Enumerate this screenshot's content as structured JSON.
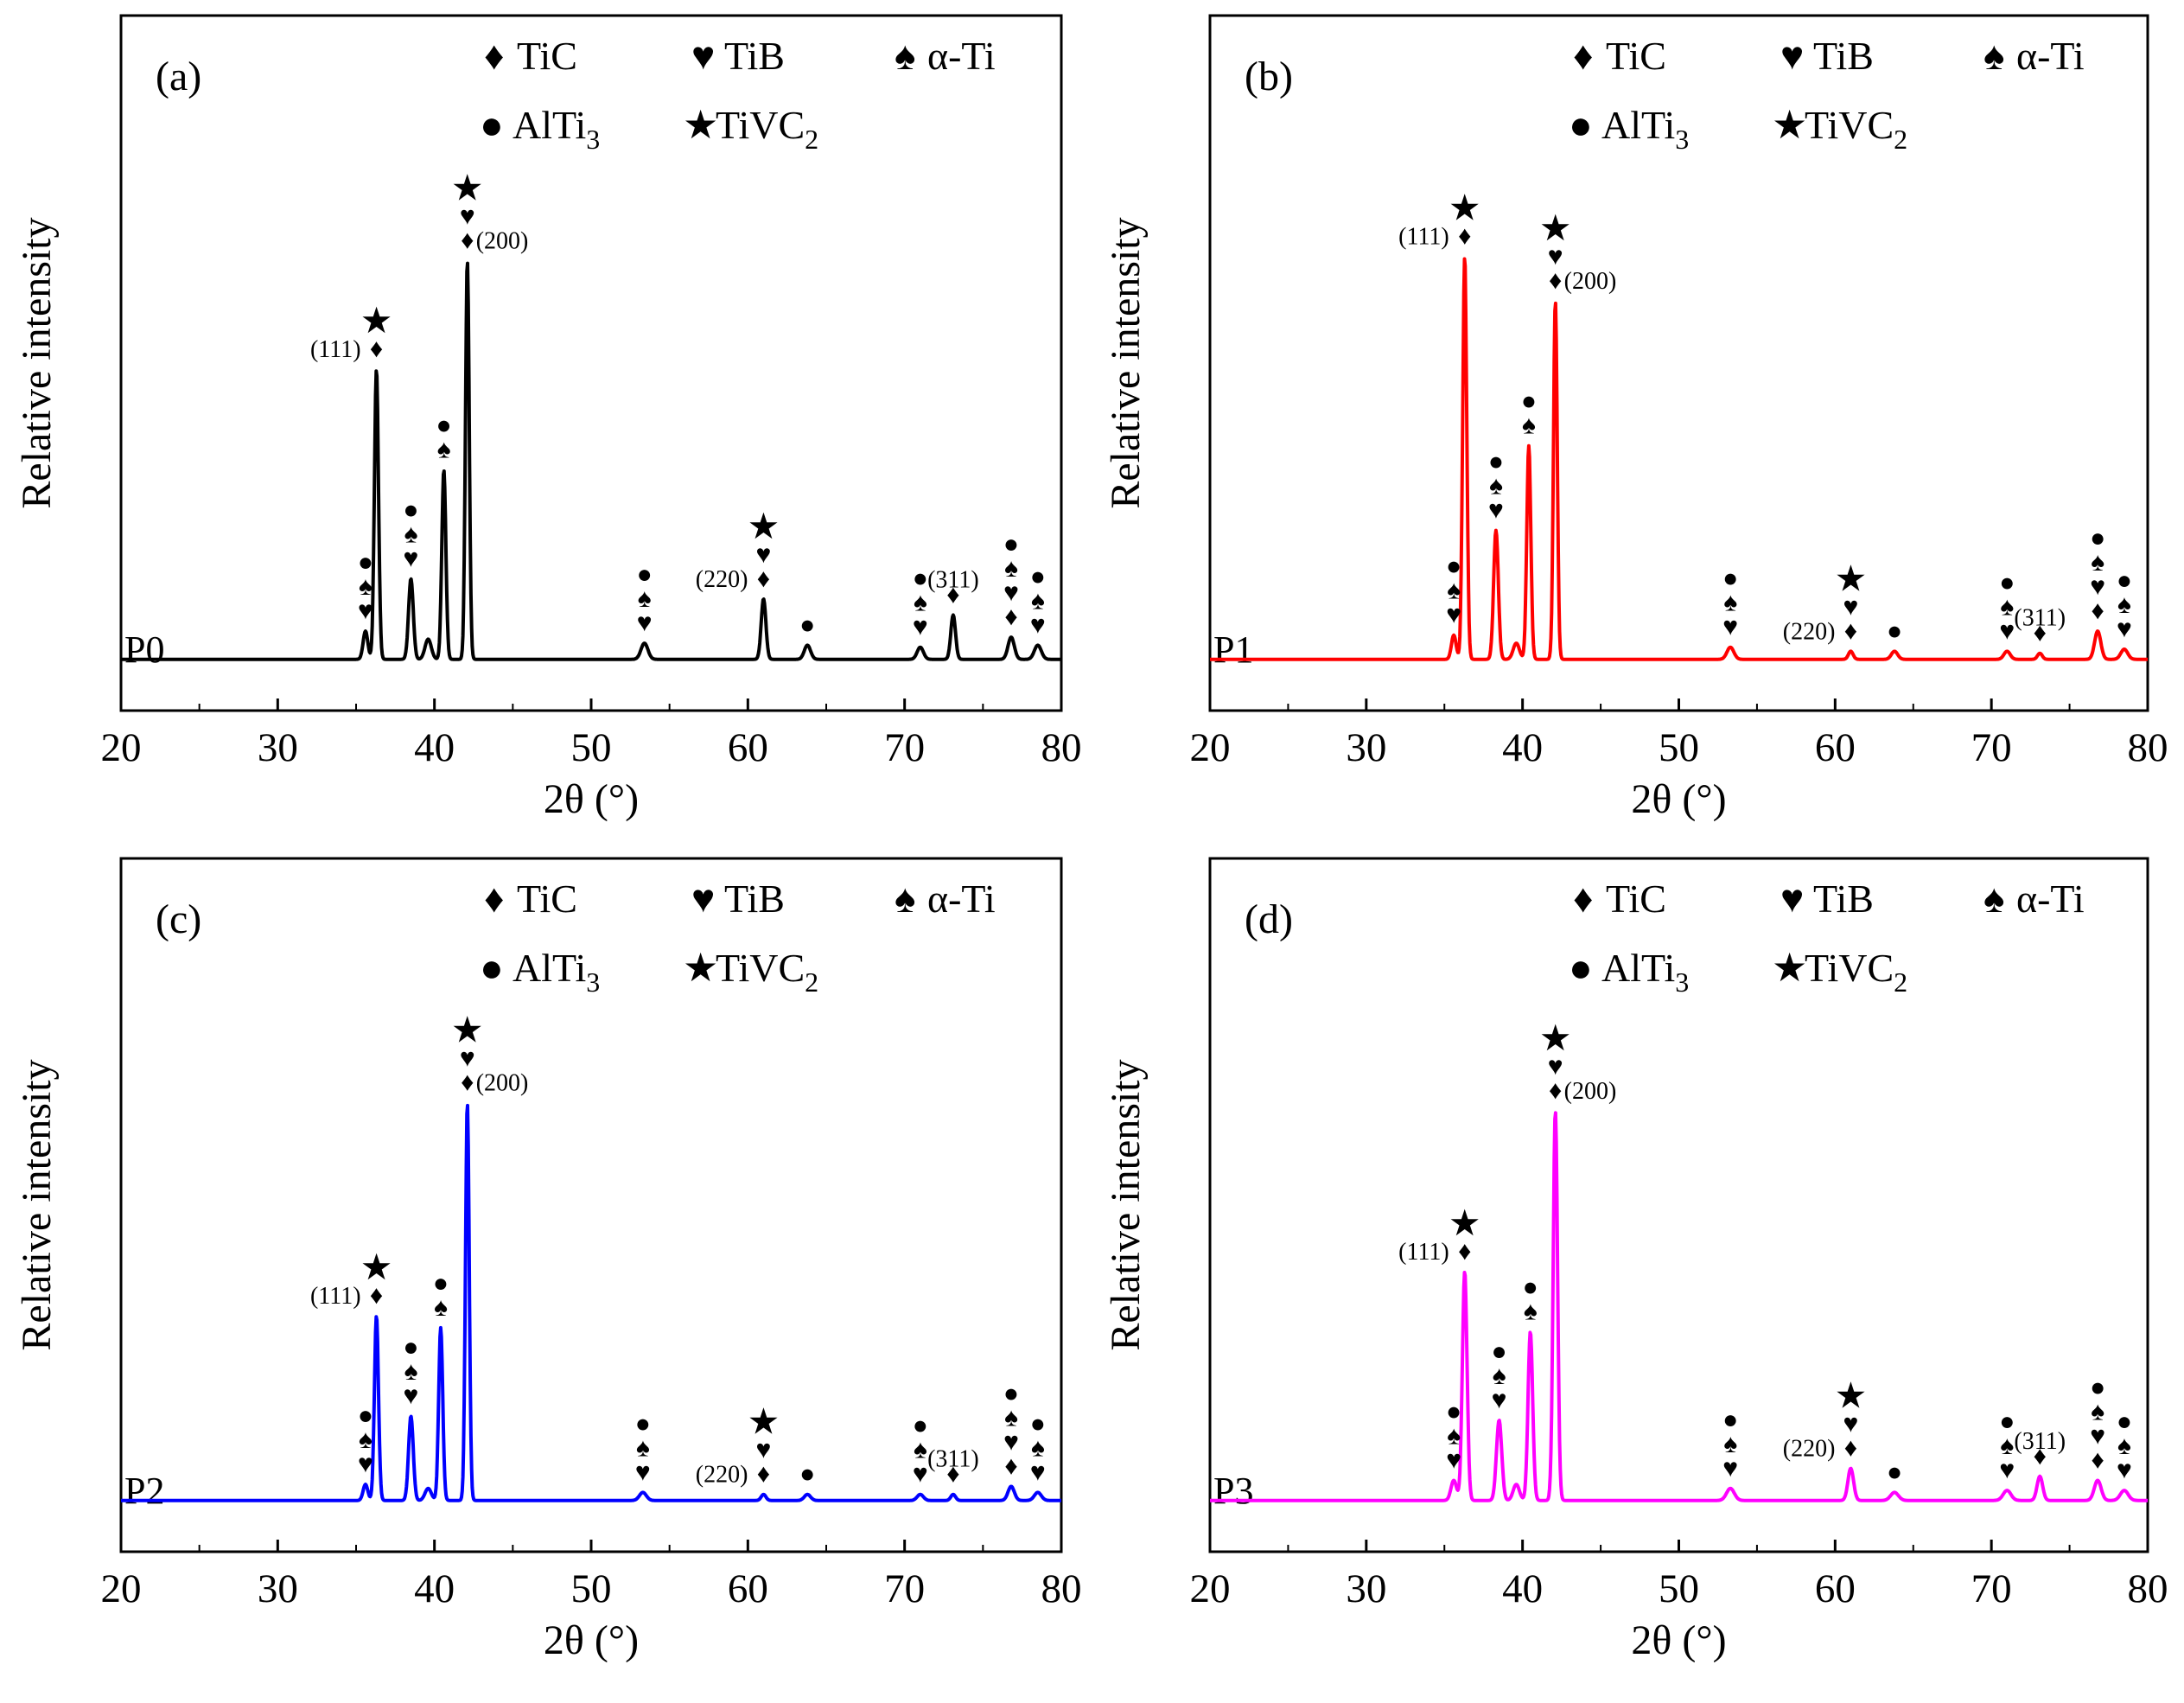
{
  "chart_data": [
    {
      "type": "line",
      "panel": "(a)",
      "sample": "P0",
      "color": "#000000",
      "xlabel": "2θ (°)",
      "ylabel": "Relative intensity",
      "xlim": [
        20,
        80
      ],
      "xticks": [
        "20",
        "30",
        "40",
        "50",
        "60",
        "70",
        "80"
      ],
      "ylim": [
        0,
        150
      ],
      "baseline": 2,
      "legend": [
        "TiC",
        "TiB",
        "α-Ti",
        "AlTi3",
        "TiVC2"
      ],
      "peaks": [
        {
          "x": 35.6,
          "y": 7,
          "w": 0.15
        },
        {
          "x": 36.3,
          "y": 72,
          "w": 0.13
        },
        {
          "x": 38.5,
          "y": 20,
          "w": 0.15
        },
        {
          "x": 39.6,
          "y": 5,
          "w": 0.2
        },
        {
          "x": 40.6,
          "y": 47,
          "w": 0.13
        },
        {
          "x": 42.1,
          "y": 99,
          "w": 0.12
        },
        {
          "x": 53.4,
          "y": 4,
          "w": 0.22
        },
        {
          "x": 61.0,
          "y": 15,
          "w": 0.15
        },
        {
          "x": 63.8,
          "y": 3.5,
          "w": 0.2
        },
        {
          "x": 71.0,
          "y": 3,
          "w": 0.2
        },
        {
          "x": 73.1,
          "y": 11,
          "w": 0.15
        },
        {
          "x": 76.8,
          "y": 5.5,
          "w": 0.2
        },
        {
          "x": 78.5,
          "y": 3.5,
          "w": 0.22
        }
      ],
      "annotations": [
        {
          "x": 36.3,
          "y": 72,
          "hkl": "(111)",
          "side": "left",
          "markers": [
            "diamond",
            "star"
          ]
        },
        {
          "x": 42.1,
          "y": 99,
          "hkl": "(200)",
          "side": "right",
          "markers": [
            "diamond",
            "heart",
            "star"
          ]
        },
        {
          "x": 61.0,
          "y": 15,
          "hkl": "(220)",
          "side": "left",
          "markers": [
            "diamond",
            "heart",
            "star"
          ]
        },
        {
          "x": 73.1,
          "y": 11,
          "hkl": "(311)",
          "side": "top",
          "markers": [
            "diamond"
          ]
        },
        {
          "x": 35.6,
          "y": 7,
          "markers": [
            "heart",
            "spade",
            "circle"
          ]
        },
        {
          "x": 38.5,
          "y": 20,
          "markers": [
            "heart",
            "spade",
            "circle"
          ]
        },
        {
          "x": 40.6,
          "y": 47,
          "markers": [
            "spade",
            "circle"
          ]
        },
        {
          "x": 53.4,
          "y": 4,
          "markers": [
            "heart",
            "spade",
            "circle"
          ]
        },
        {
          "x": 63.8,
          "y": 3.5,
          "markers": [
            "circle"
          ]
        },
        {
          "x": 71.0,
          "y": 3,
          "markers": [
            "heart",
            "spade",
            "circle"
          ]
        },
        {
          "x": 76.8,
          "y": 5.5,
          "markers": [
            "diamond",
            "heart",
            "spade",
            "circle"
          ]
        },
        {
          "x": 78.5,
          "y": 3.5,
          "markers": [
            "heart",
            "spade",
            "circle"
          ]
        }
      ]
    },
    {
      "type": "line",
      "panel": "(b)",
      "sample": "P1",
      "color": "#ff0000",
      "xlabel": "2θ (°)",
      "ylabel": "Relative intensity",
      "xlim": [
        20,
        80
      ],
      "xticks": [
        "20",
        "30",
        "40",
        "50",
        "60",
        "70",
        "80"
      ],
      "ylim": [
        0,
        150
      ],
      "baseline": 2,
      "legend": [
        "TiC",
        "TiB",
        "α-Ti",
        "AlTi3",
        "TiVC2"
      ],
      "peaks": [
        {
          "x": 35.6,
          "y": 6,
          "w": 0.15
        },
        {
          "x": 36.3,
          "y": 100,
          "w": 0.13
        },
        {
          "x": 38.3,
          "y": 32,
          "w": 0.15
        },
        {
          "x": 39.6,
          "y": 4,
          "w": 0.2
        },
        {
          "x": 40.4,
          "y": 53,
          "w": 0.13
        },
        {
          "x": 42.1,
          "y": 89,
          "w": 0.12
        },
        {
          "x": 53.3,
          "y": 3,
          "w": 0.22
        },
        {
          "x": 61.0,
          "y": 2,
          "w": 0.15
        },
        {
          "x": 63.8,
          "y": 2,
          "w": 0.2
        },
        {
          "x": 71.0,
          "y": 2,
          "w": 0.2
        },
        {
          "x": 73.1,
          "y": 1.5,
          "w": 0.15
        },
        {
          "x": 76.8,
          "y": 7,
          "w": 0.2
        },
        {
          "x": 78.5,
          "y": 2.5,
          "w": 0.22
        }
      ],
      "annotations": [
        {
          "x": 36.3,
          "y": 100,
          "hkl": "(111)",
          "side": "left",
          "markers": [
            "diamond",
            "star"
          ]
        },
        {
          "x": 42.1,
          "y": 89,
          "hkl": "(200)",
          "side": "right",
          "markers": [
            "diamond",
            "heart",
            "star"
          ]
        },
        {
          "x": 61.0,
          "y": 2,
          "hkl": "(220)",
          "side": "left",
          "markers": [
            "diamond",
            "heart",
            "star"
          ]
        },
        {
          "x": 73.1,
          "y": 1.5,
          "hkl": "(311)",
          "side": "top",
          "markers": [
            "diamond"
          ]
        },
        {
          "x": 35.6,
          "y": 6,
          "markers": [
            "heart",
            "spade",
            "circle"
          ]
        },
        {
          "x": 38.3,
          "y": 32,
          "markers": [
            "heart",
            "spade",
            "circle"
          ]
        },
        {
          "x": 40.4,
          "y": 53,
          "markers": [
            "spade",
            "circle"
          ]
        },
        {
          "x": 53.3,
          "y": 3,
          "markers": [
            "heart",
            "spade",
            "circle"
          ]
        },
        {
          "x": 63.8,
          "y": 2,
          "markers": [
            "circle"
          ]
        },
        {
          "x": 71.0,
          "y": 2,
          "markers": [
            "heart",
            "spade",
            "circle"
          ]
        },
        {
          "x": 76.8,
          "y": 7,
          "markers": [
            "diamond",
            "heart",
            "spade",
            "circle"
          ]
        },
        {
          "x": 78.5,
          "y": 2.5,
          "markers": [
            "heart",
            "spade",
            "circle"
          ]
        }
      ]
    },
    {
      "type": "line",
      "panel": "(c)",
      "sample": "P2",
      "color": "#0000ff",
      "xlabel": "2θ (°)",
      "ylabel": "Relative intensity",
      "xlim": [
        20,
        80
      ],
      "xticks": [
        "20",
        "30",
        "40",
        "50",
        "60",
        "70",
        "80"
      ],
      "ylim": [
        0,
        150
      ],
      "baseline": 2,
      "legend": [
        "TiC",
        "TiB",
        "α-Ti",
        "AlTi3",
        "TiVC2"
      ],
      "peaks": [
        {
          "x": 35.6,
          "y": 4,
          "w": 0.15
        },
        {
          "x": 36.3,
          "y": 46,
          "w": 0.13
        },
        {
          "x": 38.5,
          "y": 21,
          "w": 0.15
        },
        {
          "x": 39.6,
          "y": 3,
          "w": 0.2
        },
        {
          "x": 40.4,
          "y": 43,
          "w": 0.13
        },
        {
          "x": 42.1,
          "y": 99,
          "w": 0.12
        },
        {
          "x": 53.3,
          "y": 2,
          "w": 0.22
        },
        {
          "x": 61.0,
          "y": 1.5,
          "w": 0.15
        },
        {
          "x": 63.8,
          "y": 1.5,
          "w": 0.2
        },
        {
          "x": 71.0,
          "y": 1.5,
          "w": 0.2
        },
        {
          "x": 73.1,
          "y": 1.5,
          "w": 0.15
        },
        {
          "x": 76.8,
          "y": 3.5,
          "w": 0.2
        },
        {
          "x": 78.5,
          "y": 2,
          "w": 0.22
        }
      ],
      "annotations": [
        {
          "x": 36.3,
          "y": 46,
          "hkl": "(111)",
          "side": "left",
          "markers": [
            "diamond",
            "star"
          ]
        },
        {
          "x": 42.1,
          "y": 99,
          "hkl": "(200)",
          "side": "right",
          "markers": [
            "diamond",
            "heart",
            "star"
          ]
        },
        {
          "x": 61.0,
          "y": 1.5,
          "hkl": "(220)",
          "side": "left",
          "markers": [
            "diamond",
            "heart",
            "star"
          ]
        },
        {
          "x": 73.1,
          "y": 1.5,
          "hkl": "(311)",
          "side": "top",
          "markers": [
            "diamond"
          ]
        },
        {
          "x": 35.6,
          "y": 4,
          "markers": [
            "heart",
            "spade",
            "circle"
          ]
        },
        {
          "x": 38.5,
          "y": 21,
          "markers": [
            "heart",
            "spade",
            "circle"
          ]
        },
        {
          "x": 40.4,
          "y": 43,
          "markers": [
            "spade",
            "circle"
          ]
        },
        {
          "x": 53.3,
          "y": 2,
          "markers": [
            "heart",
            "spade",
            "circle"
          ]
        },
        {
          "x": 63.8,
          "y": 1.5,
          "markers": [
            "circle"
          ]
        },
        {
          "x": 71.0,
          "y": 1.5,
          "markers": [
            "heart",
            "spade",
            "circle"
          ]
        },
        {
          "x": 76.8,
          "y": 3.5,
          "markers": [
            "diamond",
            "heart",
            "spade",
            "circle"
          ]
        },
        {
          "x": 78.5,
          "y": 2,
          "markers": [
            "heart",
            "spade",
            "circle"
          ]
        }
      ]
    },
    {
      "type": "line",
      "panel": "(d)",
      "sample": "P3",
      "color": "#ff00ff",
      "xlabel": "2θ (°)",
      "ylabel": "Relative intensity",
      "xlim": [
        20,
        80
      ],
      "xticks": [
        "20",
        "30",
        "40",
        "50",
        "60",
        "70",
        "80"
      ],
      "ylim": [
        0,
        150
      ],
      "baseline": 2,
      "legend": [
        "TiC",
        "TiB",
        "α-Ti",
        "AlTi3",
        "TiVC2"
      ],
      "peaks": [
        {
          "x": 35.6,
          "y": 5,
          "w": 0.18
        },
        {
          "x": 36.3,
          "y": 57,
          "w": 0.15
        },
        {
          "x": 38.5,
          "y": 20,
          "w": 0.17
        },
        {
          "x": 39.6,
          "y": 4,
          "w": 0.2
        },
        {
          "x": 40.5,
          "y": 42,
          "w": 0.15
        },
        {
          "x": 42.1,
          "y": 97,
          "w": 0.14
        },
        {
          "x": 53.3,
          "y": 3,
          "w": 0.25
        },
        {
          "x": 61.0,
          "y": 8,
          "w": 0.18
        },
        {
          "x": 63.8,
          "y": 2,
          "w": 0.25
        },
        {
          "x": 71.0,
          "y": 2.5,
          "w": 0.25
        },
        {
          "x": 73.1,
          "y": 6,
          "w": 0.18
        },
        {
          "x": 76.8,
          "y": 5,
          "w": 0.22
        },
        {
          "x": 78.5,
          "y": 2.5,
          "w": 0.25
        }
      ],
      "annotations": [
        {
          "x": 36.3,
          "y": 57,
          "hkl": "(111)",
          "side": "left",
          "markers": [
            "diamond",
            "star"
          ]
        },
        {
          "x": 42.1,
          "y": 97,
          "hkl": "(200)",
          "side": "right",
          "markers": [
            "diamond",
            "heart",
            "star"
          ]
        },
        {
          "x": 61.0,
          "y": 8,
          "hkl": "(220)",
          "side": "left",
          "markers": [
            "diamond",
            "heart",
            "star"
          ]
        },
        {
          "x": 73.1,
          "y": 6,
          "hkl": "(311)",
          "side": "top",
          "markers": [
            "diamond"
          ]
        },
        {
          "x": 35.6,
          "y": 5,
          "markers": [
            "heart",
            "spade",
            "circle"
          ]
        },
        {
          "x": 38.5,
          "y": 20,
          "markers": [
            "heart",
            "spade",
            "circle"
          ]
        },
        {
          "x": 40.5,
          "y": 42,
          "markers": [
            "spade",
            "circle"
          ]
        },
        {
          "x": 53.3,
          "y": 3,
          "markers": [
            "heart",
            "spade",
            "circle"
          ]
        },
        {
          "x": 63.8,
          "y": 2,
          "markers": [
            "circle"
          ]
        },
        {
          "x": 71.0,
          "y": 2.5,
          "markers": [
            "heart",
            "spade",
            "circle"
          ]
        },
        {
          "x": 76.8,
          "y": 5,
          "markers": [
            "diamond",
            "heart",
            "spade",
            "circle"
          ]
        },
        {
          "x": 78.5,
          "y": 2.5,
          "markers": [
            "heart",
            "spade",
            "circle"
          ]
        }
      ]
    }
  ]
}
